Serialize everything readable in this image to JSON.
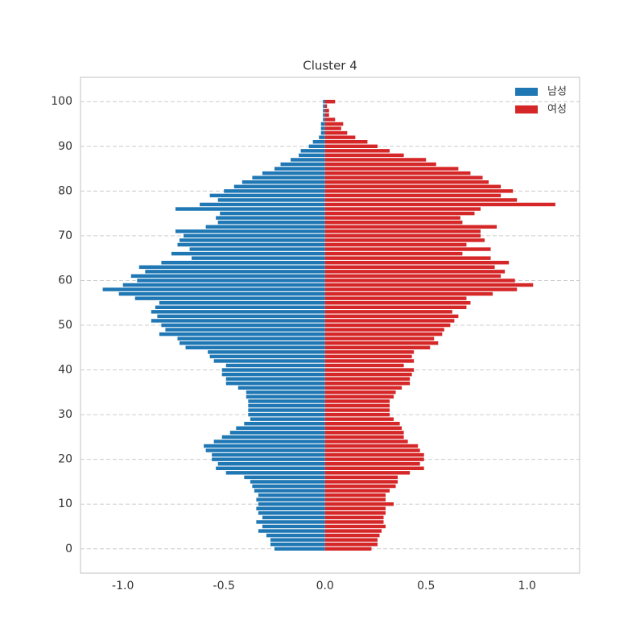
{
  "chart_data": {
    "type": "pyramid",
    "title": "Cluster 4",
    "y": [
      0,
      1,
      2,
      3,
      4,
      5,
      6,
      7,
      8,
      9,
      10,
      11,
      12,
      13,
      14,
      15,
      16,
      17,
      18,
      19,
      20,
      21,
      22,
      23,
      24,
      25,
      26,
      27,
      28,
      29,
      30,
      31,
      32,
      33,
      34,
      35,
      36,
      37,
      38,
      39,
      40,
      41,
      42,
      43,
      44,
      45,
      46,
      47,
      48,
      49,
      50,
      51,
      52,
      53,
      54,
      55,
      56,
      57,
      58,
      59,
      60,
      61,
      62,
      63,
      64,
      65,
      66,
      67,
      68,
      69,
      70,
      71,
      72,
      73,
      74,
      75,
      76,
      77,
      78,
      79,
      80,
      81,
      82,
      83,
      84,
      85,
      86,
      87,
      88,
      89,
      90,
      91,
      92,
      93,
      94,
      95,
      96,
      97,
      98,
      99,
      100
    ],
    "series": [
      {
        "name": "남성",
        "color": "#1f77b4",
        "values": [
          -0.25,
          -0.27,
          -0.27,
          -0.29,
          -0.33,
          -0.31,
          -0.34,
          -0.31,
          -0.33,
          -0.34,
          -0.33,
          -0.34,
          -0.33,
          -0.35,
          -0.36,
          -0.37,
          -0.4,
          -0.49,
          -0.54,
          -0.53,
          -0.56,
          -0.56,
          -0.59,
          -0.6,
          -0.55,
          -0.51,
          -0.47,
          -0.44,
          -0.4,
          -0.37,
          -0.38,
          -0.38,
          -0.38,
          -0.38,
          -0.39,
          -0.39,
          -0.43,
          -0.49,
          -0.49,
          -0.51,
          -0.51,
          -0.49,
          -0.55,
          -0.57,
          -0.58,
          -0.69,
          -0.72,
          -0.73,
          -0.82,
          -0.79,
          -0.81,
          -0.86,
          -0.83,
          -0.86,
          -0.84,
          -0.82,
          -0.94,
          -1.02,
          -1.1,
          -1.0,
          -0.93,
          -0.96,
          -0.89,
          -0.92,
          -0.81,
          -0.66,
          -0.76,
          -0.67,
          -0.73,
          -0.72,
          -0.7,
          -0.74,
          -0.59,
          -0.53,
          -0.54,
          -0.52,
          -0.74,
          -0.62,
          -0.53,
          -0.57,
          -0.5,
          -0.45,
          -0.41,
          -0.36,
          -0.31,
          -0.25,
          -0.22,
          -0.17,
          -0.13,
          -0.12,
          -0.08,
          -0.06,
          -0.03,
          -0.02,
          -0.02,
          -0.02,
          -0.01,
          -0.01,
          -0.01,
          -0.01,
          -0.01
        ]
      },
      {
        "name": "여성",
        "color": "#d62728",
        "values": [
          0.23,
          0.26,
          0.26,
          0.27,
          0.28,
          0.3,
          0.29,
          0.29,
          0.3,
          0.3,
          0.34,
          0.3,
          0.3,
          0.32,
          0.35,
          0.36,
          0.36,
          0.42,
          0.49,
          0.47,
          0.49,
          0.49,
          0.47,
          0.46,
          0.41,
          0.39,
          0.39,
          0.38,
          0.37,
          0.34,
          0.32,
          0.32,
          0.32,
          0.32,
          0.34,
          0.35,
          0.38,
          0.42,
          0.42,
          0.43,
          0.44,
          0.39,
          0.44,
          0.43,
          0.44,
          0.52,
          0.56,
          0.54,
          0.58,
          0.59,
          0.62,
          0.64,
          0.66,
          0.63,
          0.7,
          0.72,
          0.7,
          0.83,
          0.95,
          1.03,
          0.94,
          0.87,
          0.89,
          0.84,
          0.91,
          0.82,
          0.68,
          0.82,
          0.7,
          0.79,
          0.77,
          0.77,
          0.85,
          0.68,
          0.67,
          0.74,
          0.77,
          1.14,
          0.95,
          0.87,
          0.93,
          0.87,
          0.81,
          0.78,
          0.72,
          0.66,
          0.55,
          0.5,
          0.39,
          0.32,
          0.26,
          0.21,
          0.15,
          0.11,
          0.08,
          0.09,
          0.05,
          0.02,
          0.02,
          0.01,
          0.05
        ]
      }
    ],
    "xlim": [
      -1.21,
      1.26
    ],
    "ylim": [
      -5.44,
      105.44
    ],
    "xticks": [
      {
        "value": -1,
        "label": "-1.0"
      },
      -0.5,
      {
        "value": 0,
        "label": "0.0"
      },
      0.5,
      {
        "value": 1,
        "label": "1.0"
      }
    ],
    "yticks": [
      0,
      10,
      20,
      30,
      40,
      50,
      60,
      70,
      80,
      90,
      100
    ],
    "grid": "y",
    "legend": "upper right"
  }
}
